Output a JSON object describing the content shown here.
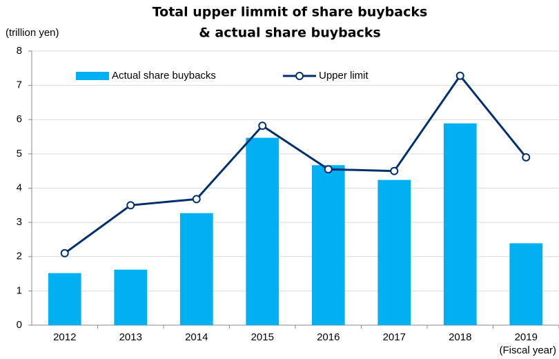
{
  "chart_data": {
    "type": "bar",
    "title": [
      "Total upper limmit of share buybacks",
      "&  actual share buybacks"
    ],
    "y_label": "(trillion yen)",
    "x_label": "(Fiscal year)",
    "categories": [
      "2012",
      "2013",
      "2014",
      "2015",
      "2016",
      "2017",
      "2018",
      "2019"
    ],
    "series": [
      {
        "name": "Actual share buybacks",
        "type": "bar",
        "color": "#00b0f0",
        "values": [
          1.52,
          1.62,
          3.27,
          5.47,
          4.67,
          4.24,
          5.89,
          2.39
        ]
      },
      {
        "name": "Upper limit",
        "type": "line",
        "color": "#002e6e",
        "values": [
          2.1,
          3.5,
          3.68,
          5.82,
          4.55,
          4.5,
          7.28,
          4.9
        ]
      }
    ],
    "ylim": [
      0,
      8
    ],
    "yticks": [
      0,
      1,
      2,
      3,
      4,
      5,
      6,
      7,
      8
    ],
    "grid": true,
    "legend": "top"
  }
}
